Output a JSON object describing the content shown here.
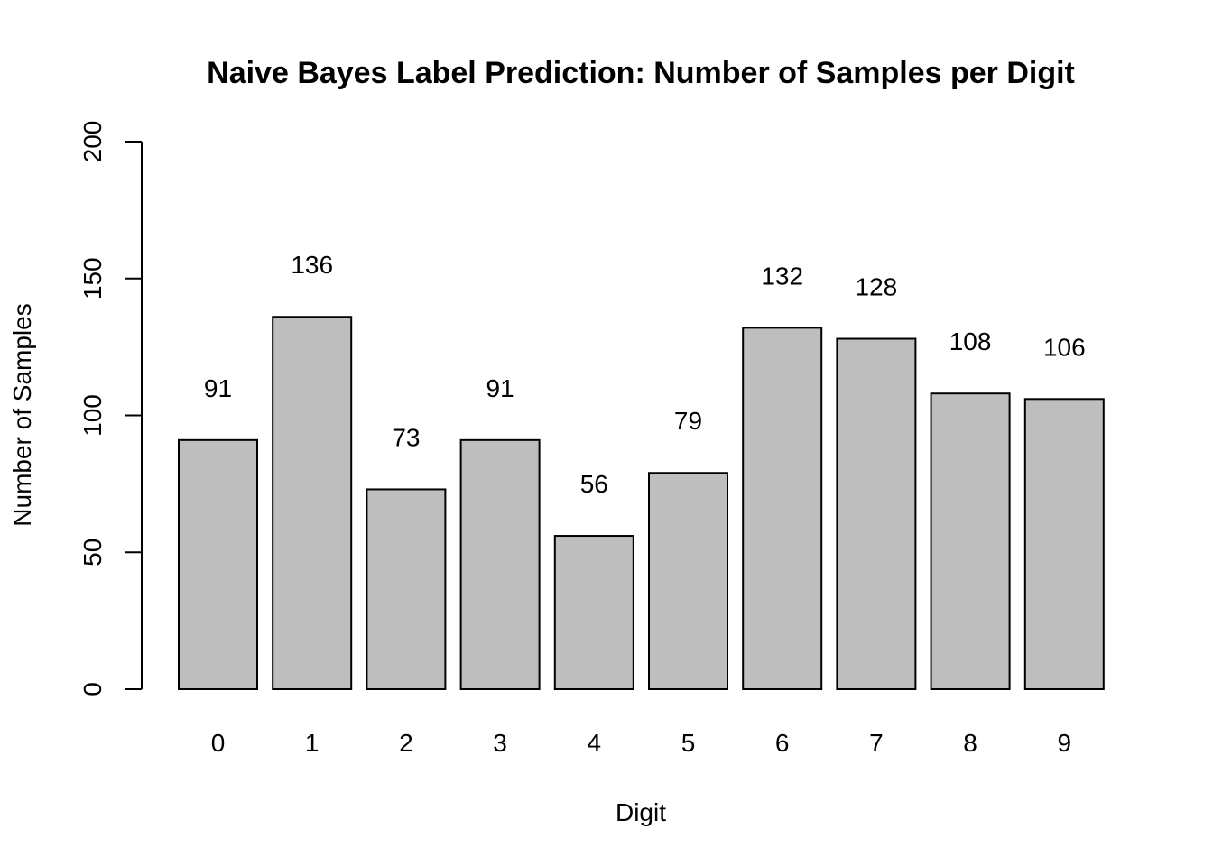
{
  "chart_data": {
    "type": "bar",
    "title": "Naive Bayes Label Prediction: Number of Samples per Digit",
    "xlabel": "Digit",
    "ylabel": "Number of Samples",
    "categories": [
      "0",
      "1",
      "2",
      "3",
      "4",
      "5",
      "6",
      "7",
      "8",
      "9"
    ],
    "values": [
      91,
      136,
      73,
      91,
      56,
      79,
      132,
      128,
      108,
      106
    ],
    "data_labels": [
      "91",
      "136",
      "73",
      "91",
      "56",
      "79",
      "132",
      "128",
      "108",
      "106"
    ],
    "ylim": [
      0,
      200
    ],
    "yticks": [
      0,
      50,
      100,
      150,
      200
    ],
    "ytick_labels": [
      "0",
      "50",
      "100",
      "150",
      "200"
    ],
    "grid": false,
    "legend": "none",
    "bar_color": "#bebebe",
    "bar_edge_color": "#000000"
  }
}
